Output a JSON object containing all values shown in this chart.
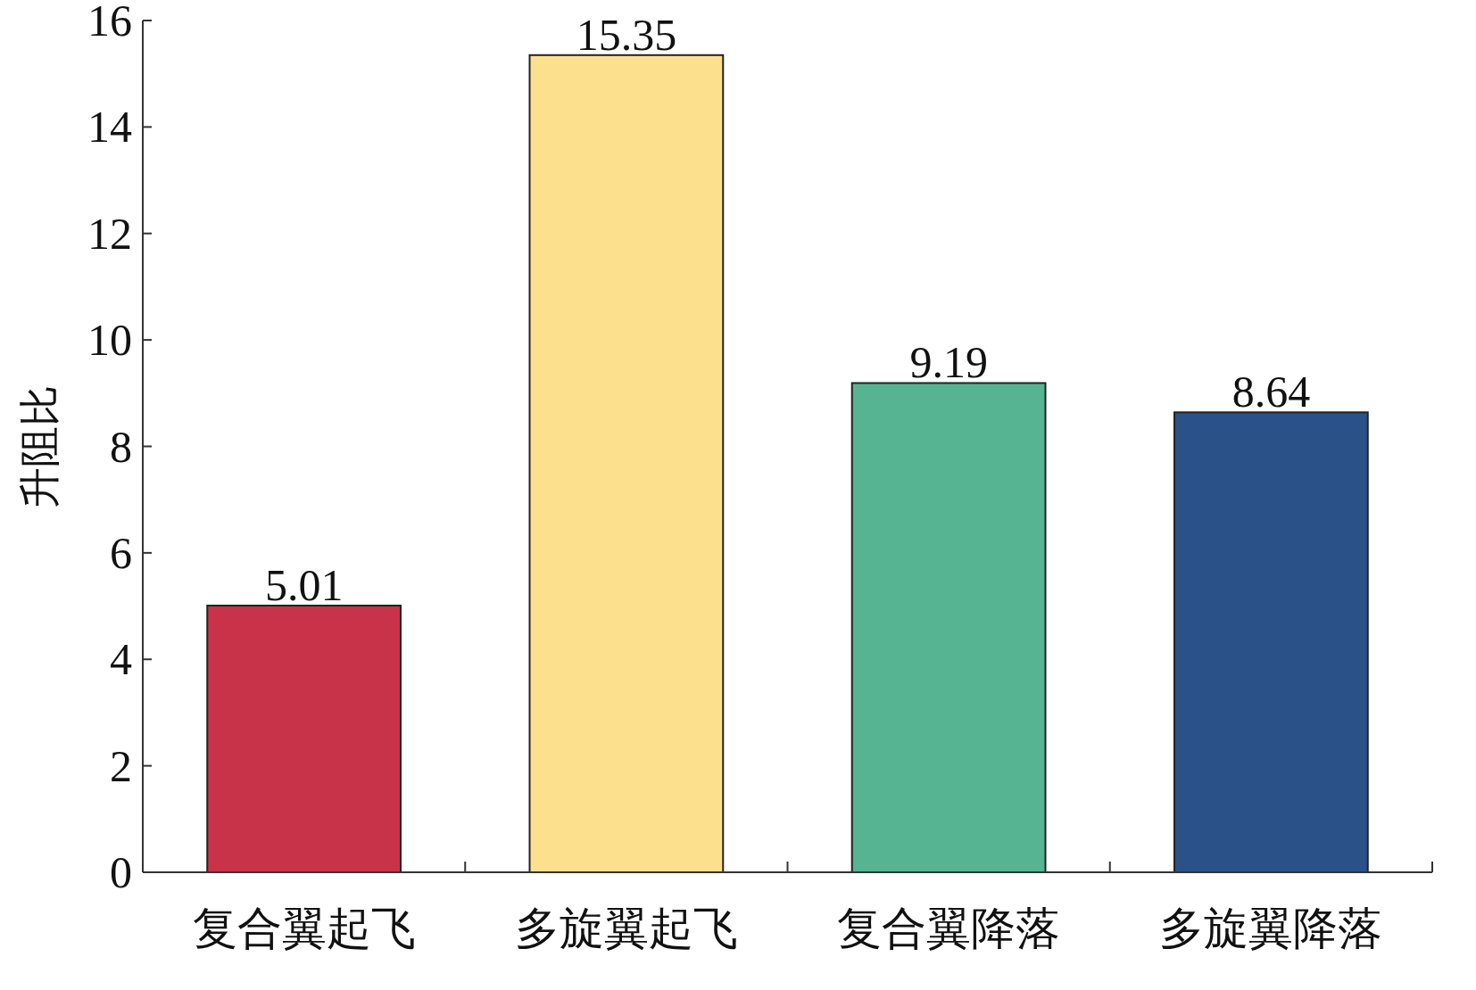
{
  "chart_data": {
    "type": "bar",
    "ylabel": "升阻比",
    "categories": [
      "复合翼起飞",
      "多旋翼起飞",
      "复合翼降落",
      "多旋翼降落"
    ],
    "values": [
      5.01,
      15.35,
      9.19,
      8.64
    ],
    "colors": [
      "#c8334a",
      "#fde08e",
      "#56b493",
      "#2b5189"
    ],
    "ylim": [
      0,
      16
    ],
    "yticks": [
      0,
      2,
      4,
      6,
      8,
      10,
      12,
      14,
      16
    ],
    "data_labels": true
  }
}
